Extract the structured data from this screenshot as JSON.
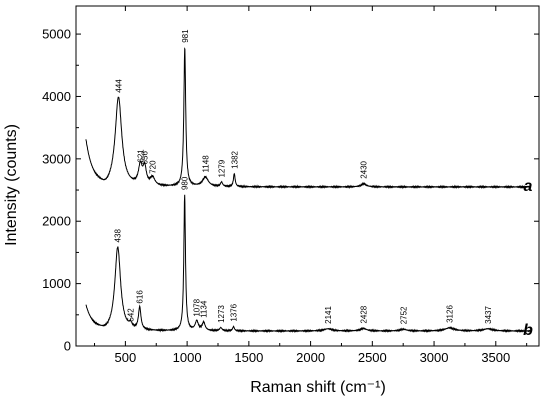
{
  "chart_data": {
    "type": "line",
    "xlabel": "Raman shift (cm⁻¹)",
    "ylabel": "Intensity (counts)",
    "xlim": [
      100,
      3850
    ],
    "ylim": [
      0,
      5450
    ],
    "xticks": [
      500,
      1000,
      1500,
      2000,
      2500,
      3000,
      3500
    ],
    "yticks": [
      0,
      1000,
      2000,
      3000,
      4000,
      5000
    ],
    "grid": false,
    "series": [
      {
        "name": "a",
        "baseline": 2550,
        "start": [
          180,
          3300
        ],
        "end": 3780,
        "peaks": [
          {
            "x": 444,
            "y": 3980,
            "w": 32,
            "label": "444"
          },
          {
            "x": 621,
            "y": 2860,
            "w": 18,
            "label": "621"
          },
          {
            "x": 656,
            "y": 2830,
            "w": 16,
            "label": "656"
          },
          {
            "x": 720,
            "y": 2680,
            "w": 22,
            "label": "720"
          },
          {
            "x": 981,
            "y": 4780,
            "w": 9,
            "label": "981"
          },
          {
            "x": 1148,
            "y": 2700,
            "w": 28,
            "label": "1148"
          },
          {
            "x": 1279,
            "y": 2620,
            "w": 10,
            "label": "1279"
          },
          {
            "x": 1382,
            "y": 2760,
            "w": 8,
            "label": "1382"
          },
          {
            "x": 2430,
            "y": 2600,
            "w": 25,
            "label": "2430"
          }
        ]
      },
      {
        "name": "b",
        "baseline": 240,
        "start": [
          180,
          650
        ],
        "end": 3780,
        "peaks": [
          {
            "x": 438,
            "y": 1580,
            "w": 28,
            "label": "438"
          },
          {
            "x": 542,
            "y": 310,
            "w": 14,
            "label": "542"
          },
          {
            "x": 616,
            "y": 600,
            "w": 12,
            "label": "616"
          },
          {
            "x": 980,
            "y": 2420,
            "w": 8,
            "label": "980"
          },
          {
            "x": 1078,
            "y": 390,
            "w": 15,
            "label": "1078"
          },
          {
            "x": 1134,
            "y": 370,
            "w": 14,
            "label": "1134"
          },
          {
            "x": 1273,
            "y": 290,
            "w": 12,
            "label": "1273"
          },
          {
            "x": 1376,
            "y": 310,
            "w": 8,
            "label": "1376"
          },
          {
            "x": 2141,
            "y": 275,
            "w": 40,
            "label": "2141"
          },
          {
            "x": 2428,
            "y": 280,
            "w": 30,
            "label": "2428"
          },
          {
            "x": 2752,
            "y": 268,
            "w": 30,
            "label": "2752"
          },
          {
            "x": 3126,
            "y": 290,
            "w": 45,
            "label": "3126"
          },
          {
            "x": 3437,
            "y": 275,
            "w": 45,
            "label": "3437"
          }
        ]
      }
    ]
  }
}
